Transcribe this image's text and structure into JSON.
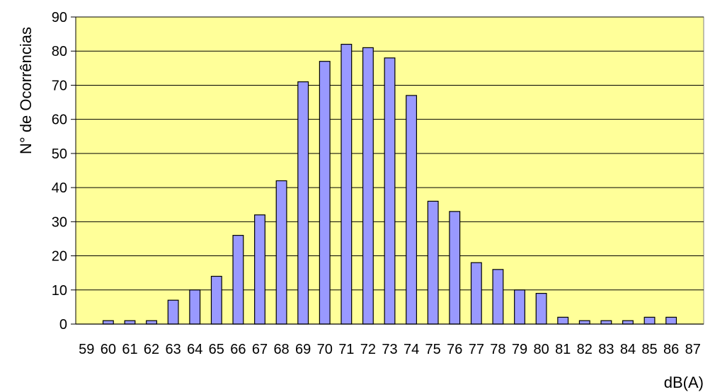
{
  "chart_data": {
    "type": "bar",
    "title": "",
    "xlabel": "dB(A)",
    "ylabel": "N° de Ocorrências",
    "ylim": [
      0,
      90
    ],
    "yticks": [
      0,
      10,
      20,
      30,
      40,
      50,
      60,
      70,
      80,
      90
    ],
    "grid": "horizontal",
    "legend": "none",
    "categories": [
      "59",
      "60",
      "61",
      "62",
      "63",
      "64",
      "65",
      "66",
      "67",
      "68",
      "69",
      "70",
      "71",
      "72",
      "73",
      "74",
      "75",
      "76",
      "77",
      "78",
      "79",
      "80",
      "81",
      "82",
      "83",
      "84",
      "85",
      "86",
      "87"
    ],
    "values": [
      0,
      1,
      1,
      1,
      7,
      10,
      14,
      26,
      32,
      42,
      71,
      77,
      82,
      81,
      78,
      67,
      36,
      33,
      18,
      16,
      10,
      9,
      2,
      1,
      1,
      1,
      2,
      2,
      0
    ],
    "colors": {
      "plot_background": "#FFFF99",
      "bar_fill": "#9999FF",
      "bar_stroke": "#000000",
      "gridline": "#000000"
    }
  }
}
